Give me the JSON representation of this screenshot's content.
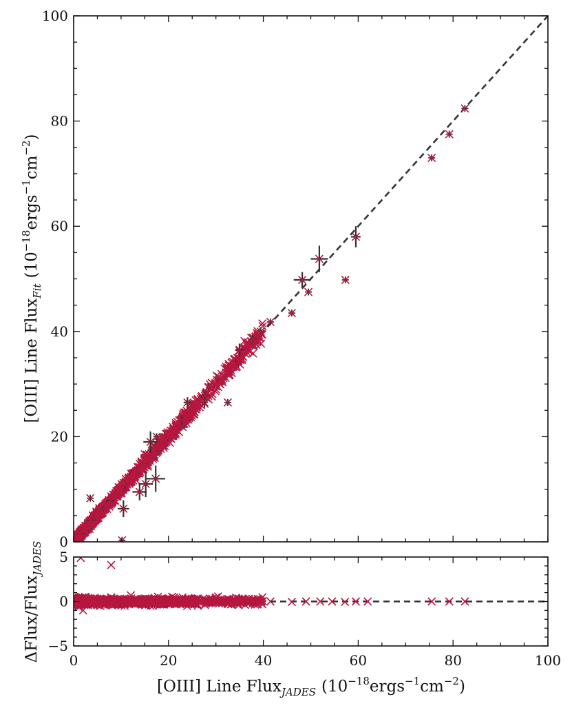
{
  "chart_data": [
    {
      "type": "scatter",
      "panel": "main",
      "xlim": [
        0,
        100
      ],
      "ylim": [
        0,
        100
      ],
      "xticks": [
        "0",
        "20",
        "40",
        "60",
        "80",
        "100"
      ],
      "yticks": [
        "0",
        "20",
        "40",
        "60",
        "80",
        "100"
      ],
      "ylabel": {
        "main": "[OIII] Line Flux",
        "sub": "Fit",
        "unit_open": "(10",
        "unit_exp1": "−18",
        "unit_mid": "ergs",
        "unit_exp2": "−1",
        "unit_cm": "cm",
        "unit_exp3": "−2",
        "unit_close": ")"
      },
      "marker_color": "#b5173f",
      "errorbar_color": "#333333",
      "reference_line": {
        "style": "dashed",
        "color": "#333333",
        "x": [
          0,
          100
        ],
        "y": [
          0,
          100
        ]
      },
      "errorbar_points": [
        {
          "x": 10.5,
          "y": 6.3,
          "xerr": 1.2,
          "yerr": 1.6
        },
        {
          "x": 13.9,
          "y": 9.5,
          "xerr": 1.5,
          "yerr": 1.6
        },
        {
          "x": 15.2,
          "y": 11.0,
          "xerr": 1.5,
          "yerr": 2.5
        },
        {
          "x": 16.2,
          "y": 19.0,
          "xerr": 1.5,
          "yerr": 2.0
        },
        {
          "x": 17.3,
          "y": 12.0,
          "xerr": 2.0,
          "yerr": 2.5
        },
        {
          "x": 24.0,
          "y": 26.5,
          "xerr": 0.8,
          "yerr": 1.0
        },
        {
          "x": 35.0,
          "y": 36.5,
          "xerr": 1.0,
          "yerr": 1.2
        },
        {
          "x": 48.2,
          "y": 49.8,
          "xerr": 1.8,
          "yerr": 1.5
        },
        {
          "x": 51.8,
          "y": 53.8,
          "xerr": 1.8,
          "yerr": 2.5
        },
        {
          "x": 59.5,
          "y": 58.0,
          "xerr": 1.0,
          "yerr": 2.0
        }
      ],
      "outliers": [
        {
          "x": 3.5,
          "y": 8.3
        },
        {
          "x": 10.2,
          "y": 0.3
        },
        {
          "x": 17.5,
          "y": 20.0
        },
        {
          "x": 32.5,
          "y": 26.5
        },
        {
          "x": 41.5,
          "y": 41.8
        },
        {
          "x": 46.0,
          "y": 43.5
        },
        {
          "x": 49.5,
          "y": 47.5
        },
        {
          "x": 57.3,
          "y": 49.8
        },
        {
          "x": 75.5,
          "y": 73.0
        },
        {
          "x": 79.2,
          "y": 77.5
        },
        {
          "x": 82.5,
          "y": 82.4
        }
      ]
    },
    {
      "type": "scatter",
      "panel": "residual",
      "xlim": [
        0,
        100
      ],
      "ylim": [
        -5,
        5
      ],
      "xticks": [
        "0",
        "20",
        "40",
        "60",
        "80",
        "100"
      ],
      "yticks": [
        "5",
        "0",
        "−5"
      ],
      "xlabel": {
        "main": "[OIII] Line Flux",
        "sub": "JADES",
        "unit_open": "(10",
        "unit_exp1": "−18",
        "unit_mid": "ergs",
        "unit_exp2": "−1",
        "unit_cm": "cm",
        "unit_exp3": "−2",
        "unit_close": ")"
      },
      "ylabel": {
        "main": "ΔFlux/Flux",
        "sub": "JADES"
      },
      "marker_color": "#b5173f",
      "reference_line": {
        "style": "dashed",
        "color": "#333333",
        "x": [
          0,
          100
        ],
        "y": [
          0,
          0
        ]
      },
      "outliers": [
        {
          "x": 1.5,
          "y": 4.9
        },
        {
          "x": 7.9,
          "y": 4.1
        },
        {
          "x": 2.0,
          "y": -1.0
        },
        {
          "x": 1.0,
          "y": -0.6
        }
      ],
      "sparse_points": [
        {
          "x": 41.5,
          "y": 0.0
        },
        {
          "x": 46.0,
          "y": -0.05
        },
        {
          "x": 49.0,
          "y": 0.0
        },
        {
          "x": 52.0,
          "y": 0.0
        },
        {
          "x": 54.5,
          "y": 0.0
        },
        {
          "x": 57.2,
          "y": -0.05
        },
        {
          "x": 59.5,
          "y": 0.0
        },
        {
          "x": 62.0,
          "y": 0.0
        },
        {
          "x": 75.5,
          "y": 0.0
        },
        {
          "x": 79.2,
          "y": 0.0
        },
        {
          "x": 82.5,
          "y": 0.0
        }
      ]
    }
  ]
}
